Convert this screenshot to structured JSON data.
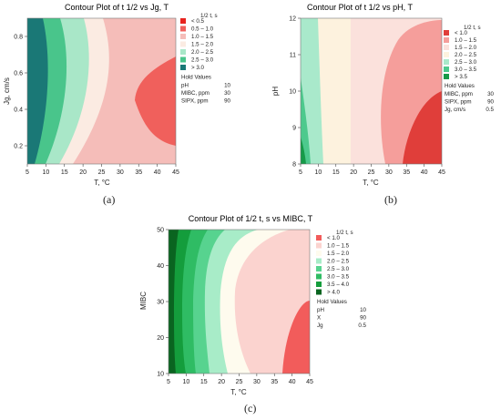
{
  "chart_data": [
    {
      "type": "contour",
      "panel_caption": "(a)",
      "title": "Contour Plot of t 1/2  vs Jg, T",
      "xlabel": "T, °C",
      "ylabel": "Jg, cm/s",
      "xticks": [
        "5",
        "10",
        "15",
        "20",
        "25",
        "30",
        "35",
        "40",
        "45"
      ],
      "yticks": [
        "0.2",
        "0.4",
        "0.6",
        "0.8"
      ],
      "xlim": [
        5,
        45
      ],
      "ylim": [
        0.1,
        0.9
      ],
      "legend_title": "1/2 t, s",
      "levels": [
        {
          "label": "<   0.5",
          "color": "#e8231e"
        },
        {
          "label": "0.5  –  1.0",
          "color": "#f0605c"
        },
        {
          "label": "1.0  –  1.5",
          "color": "#f5bdb9"
        },
        {
          "label": "1.5  –  2.0",
          "color": "#fbebe2"
        },
        {
          "label": "2.0  –  2.5",
          "color": "#a9e7c8"
        },
        {
          "label": "2.5  –  3.0",
          "color": "#49c58b"
        },
        {
          "label": ">   3.0",
          "color": "#1a7876"
        }
      ],
      "hold_title": "Hold Values",
      "hold_values": [
        {
          "name": "pH",
          "value": "10"
        },
        {
          "name": "MIBC, ppm",
          "value": "30"
        },
        {
          "name": "SIPX, ppm",
          "value": "90"
        }
      ]
    },
    {
      "type": "contour",
      "panel_caption": "(b)",
      "title": "Contour Plot of t 1/2 vs pH, T",
      "xlabel": "T, °C",
      "ylabel": "pH",
      "xticks": [
        "5",
        "10",
        "15",
        "20",
        "25",
        "30",
        "35",
        "40",
        "45"
      ],
      "yticks": [
        "8",
        "9",
        "10",
        "11",
        "12"
      ],
      "xlim": [
        5,
        45
      ],
      "ylim": [
        8,
        12
      ],
      "legend_title": "1/2 t, s",
      "levels": [
        {
          "label": "<   1.0",
          "color": "#e03e3a"
        },
        {
          "label": "1.0  –  1.5",
          "color": "#f59e9b"
        },
        {
          "label": "1.5  –  2.0",
          "color": "#fbe1dc"
        },
        {
          "label": "2.0  –  2.5",
          "color": "#fdf2de"
        },
        {
          "label": "2.5  –  3.0",
          "color": "#a9e9cb"
        },
        {
          "label": "3.0  –  3.5",
          "color": "#4dc98d"
        },
        {
          "label": ">   3.5",
          "color": "#169a48"
        }
      ],
      "hold_title": "Hold Values",
      "hold_values": [
        {
          "name": "MIBC, ppm",
          "value": "30"
        },
        {
          "name": "SIPX, ppm",
          "value": "90"
        },
        {
          "name": "Jg, cm/s",
          "value": "0.5"
        }
      ]
    },
    {
      "type": "contour",
      "panel_caption": "(c)",
      "title": "Contour Plot of 1/2 t, s vs MIBC, T",
      "xlabel": "T, °C",
      "ylabel": "MIBC",
      "xticks": [
        "5",
        "10",
        "15",
        "20",
        "25",
        "30",
        "35",
        "40",
        "45"
      ],
      "yticks": [
        "10",
        "20",
        "30",
        "40",
        "50"
      ],
      "xlim": [
        5,
        45
      ],
      "ylim": [
        10,
        50
      ],
      "legend_title": "1/2 t, s",
      "levels": [
        {
          "label": "<   1.0",
          "color": "#f25c5b"
        },
        {
          "label": "1.0  –  1.5",
          "color": "#fbd3cf"
        },
        {
          "label": "1.5  –  2.0",
          "color": "#fefbee"
        },
        {
          "label": "2.0  –  2.5",
          "color": "#a8ecc8"
        },
        {
          "label": "2.5  –  3.0",
          "color": "#57d38f"
        },
        {
          "label": "3.0  –  3.5",
          "color": "#2fbc64"
        },
        {
          "label": "3.5  –  4.0",
          "color": "#149d3c"
        },
        {
          "label": ">   4.0",
          "color": "#0a6420"
        }
      ],
      "hold_title": "Hold Values",
      "hold_values": [
        {
          "name": "pH",
          "value": "10"
        },
        {
          "name": "X",
          "value": "90"
        },
        {
          "name": "Jg",
          "value": "0.5"
        }
      ]
    }
  ]
}
